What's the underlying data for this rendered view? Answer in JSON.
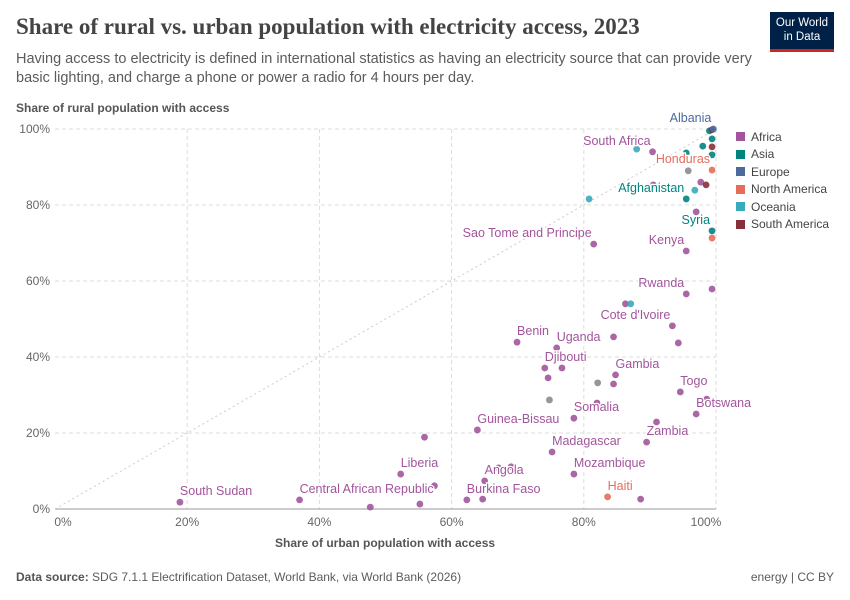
{
  "header": {
    "title": "Share of rural vs. urban population with electricity access, 2023",
    "subtitle": "Having access to electricity is defined in international statistics as having an electricity source that can provide very basic lighting, and charge a phone or power a radio for 4 hours per day.",
    "logo": "Our World in Data"
  },
  "footer": {
    "source_label": "Data source:",
    "source": "SDG 7.1.1 Electrification Dataset, World Bank, via World Bank (2026)",
    "license": "energy | CC BY"
  },
  "chart_data": {
    "type": "scatter",
    "title": "Share of rural vs. urban population with electricity access, 2023",
    "xlabel": "Share of urban population with access",
    "ylabel": "Share of rural population with access",
    "xlim": [
      0,
      100
    ],
    "ylim": [
      0,
      100
    ],
    "xticks": [
      "0%",
      "20%",
      "40%",
      "60%",
      "80%",
      "100%"
    ],
    "yticks": [
      "0%",
      "20%",
      "40%",
      "60%",
      "80%",
      "100%"
    ],
    "grid": true,
    "diagonal_reference_line": true,
    "legend_position": "right",
    "colors": {
      "Africa": "#a2559c",
      "Asia": "#00847e",
      "Europe": "#4c6a9c",
      "North America": "#e56e5a",
      "Oceania": "#38aaba",
      "South America": "#883039",
      "Other": "#8a8a92"
    },
    "legend": [
      "Africa",
      "Asia",
      "Europe",
      "North America",
      "Oceania",
      "South America"
    ],
    "points": [
      {
        "label": "South Sudan",
        "region": "Africa",
        "x": 18.9,
        "y": 1.8
      },
      {
        "label": "Central African Republic",
        "region": "Africa",
        "x": 37.0,
        "y": 2.4
      },
      {
        "label": "",
        "region": "Africa",
        "x": 47.7,
        "y": 0.5
      },
      {
        "label": "",
        "region": "Africa",
        "x": 55.2,
        "y": 1.3
      },
      {
        "label": "",
        "region": "Africa",
        "x": 55.9,
        "y": 18.9
      },
      {
        "label": "Liberia",
        "region": "Africa",
        "x": 52.3,
        "y": 9.2
      },
      {
        "label": "",
        "region": "Africa",
        "x": 57.4,
        "y": 6.1
      },
      {
        "label": "Guinea-Bissau",
        "region": "Africa",
        "x": 63.9,
        "y": 20.8
      },
      {
        "label": "Burkina Faso",
        "region": "Africa",
        "x": 62.3,
        "y": 2.4
      },
      {
        "label": "",
        "region": "Africa",
        "x": 64.7,
        "y": 2.6
      },
      {
        "label": "Angola",
        "region": "Africa",
        "x": 65.0,
        "y": 7.4
      },
      {
        "label": "",
        "region": "Africa",
        "x": 67.1,
        "y": 10.8
      },
      {
        "label": "",
        "region": "Africa",
        "x": 69.0,
        "y": 11.1
      },
      {
        "label": "Benin",
        "region": "Africa",
        "x": 69.9,
        "y": 43.9
      },
      {
        "label": "Uganda",
        "region": "Africa",
        "x": 75.9,
        "y": 42.4
      },
      {
        "label": "Djibouti",
        "region": "Africa",
        "x": 74.1,
        "y": 37.1
      },
      {
        "label": "",
        "region": "Africa",
        "x": 76.7,
        "y": 37.1
      },
      {
        "label": "",
        "region": "Africa",
        "x": 74.6,
        "y": 34.5
      },
      {
        "label": "Somalia",
        "region": "Africa",
        "x": 78.5,
        "y": 23.9
      },
      {
        "label": "Madagascar",
        "region": "Africa",
        "x": 75.2,
        "y": 15.0
      },
      {
        "label": "Mozambique",
        "region": "Africa",
        "x": 78.5,
        "y": 9.2
      },
      {
        "label": "",
        "region": "Africa",
        "x": 84.5,
        "y": 45.3
      },
      {
        "label": "Gambia",
        "region": "Africa",
        "x": 84.8,
        "y": 35.3
      },
      {
        "label": "",
        "region": "Africa",
        "x": 84.5,
        "y": 32.9
      },
      {
        "label": "",
        "region": "Africa",
        "x": 82.0,
        "y": 27.9
      },
      {
        "label": "Cote d'Ivoire",
        "region": "Africa",
        "x": 93.4,
        "y": 48.2
      },
      {
        "label": "",
        "region": "Africa",
        "x": 94.3,
        "y": 43.7
      },
      {
        "label": "",
        "region": "Africa",
        "x": 86.3,
        "y": 54.0
      },
      {
        "label": "Rwanda",
        "region": "Africa",
        "x": 95.5,
        "y": 56.6
      },
      {
        "label": "",
        "region": "Africa",
        "x": 99.4,
        "y": 57.9
      },
      {
        "label": "Togo",
        "region": "Africa",
        "x": 94.6,
        "y": 30.8
      },
      {
        "label": "",
        "region": "Africa",
        "x": 98.6,
        "y": 28.9
      },
      {
        "label": "Botswana",
        "region": "Africa",
        "x": 97.0,
        "y": 25.0
      },
      {
        "label": "",
        "region": "Africa",
        "x": 91.0,
        "y": 22.9
      },
      {
        "label": "Zambia",
        "region": "Africa",
        "x": 89.5,
        "y": 17.6
      },
      {
        "label": "Kenya",
        "region": "Africa",
        "x": 95.5,
        "y": 67.9
      },
      {
        "label": "Sao Tome and Principe",
        "region": "Africa",
        "x": 81.5,
        "y": 69.7
      },
      {
        "label": "South Africa",
        "region": "Africa",
        "x": 90.4,
        "y": 94.0
      },
      {
        "label": "",
        "region": "Africa",
        "x": 90.5,
        "y": 85.3
      },
      {
        "label": "",
        "region": "Africa",
        "x": 97.0,
        "y": 78.2
      },
      {
        "label": "",
        "region": "Africa",
        "x": 97.7,
        "y": 86.0
      },
      {
        "label": "",
        "region": "Africa",
        "x": 88.6,
        "y": 2.6
      },
      {
        "label": "",
        "region": "Other",
        "x": 82.1,
        "y": 33.2
      },
      {
        "label": "",
        "region": "Other",
        "x": 74.8,
        "y": 28.7
      },
      {
        "label": "",
        "region": "Other",
        "x": 95.8,
        "y": 89.0
      },
      {
        "label": "Haiti",
        "region": "North America",
        "x": 83.6,
        "y": 3.2
      },
      {
        "label": "Honduras",
        "region": "North America",
        "x": 99.4,
        "y": 89.2
      },
      {
        "label": "",
        "region": "North America",
        "x": 99.4,
        "y": 71.3
      },
      {
        "label": "Afghanistan",
        "region": "Asia",
        "x": 95.5,
        "y": 81.6
      },
      {
        "label": "Syria",
        "region": "Asia",
        "x": 99.4,
        "y": 73.2
      },
      {
        "label": "",
        "region": "Asia",
        "x": 95.5,
        "y": 93.7
      },
      {
        "label": "",
        "region": "Asia",
        "x": 98.0,
        "y": 95.5
      },
      {
        "label": "",
        "region": "Asia",
        "x": 99.4,
        "y": 93.2
      },
      {
        "label": "",
        "region": "Asia",
        "x": 99.4,
        "y": 97.4
      },
      {
        "label": "",
        "region": "Asia",
        "x": 99.0,
        "y": 99.5
      },
      {
        "label": "",
        "region": "Oceania",
        "x": 80.8,
        "y": 81.6
      },
      {
        "label": "",
        "region": "Oceania",
        "x": 88.0,
        "y": 94.7
      },
      {
        "label": "",
        "region": "Oceania",
        "x": 96.8,
        "y": 83.9
      },
      {
        "label": "",
        "region": "Oceania",
        "x": 87.1,
        "y": 54.0
      },
      {
        "label": "",
        "region": "South America",
        "x": 98.5,
        "y": 85.3
      },
      {
        "label": "",
        "region": "South America",
        "x": 99.4,
        "y": 95.3
      },
      {
        "label": "",
        "region": "South America",
        "x": 99.4,
        "y": 99.8
      },
      {
        "label": "Albania",
        "region": "Europe",
        "x": 99.6,
        "y": 100
      }
    ]
  }
}
